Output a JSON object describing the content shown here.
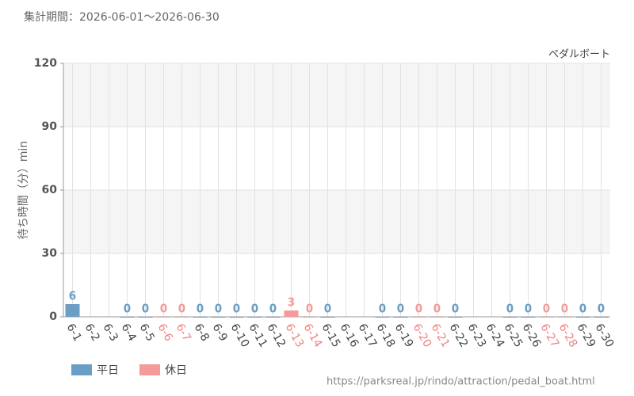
{
  "header": "集計期間：2026-06-01～2026-06-30",
  "source": "https://parksreal.jp/rindo/attraction/pedal_boat.html",
  "chart_data": {
    "type": "bar",
    "title": "ペダルボート",
    "y_label": "待ち時間（分）min",
    "categories": [
      "6-1",
      "6-2",
      "6-3",
      "6-4",
      "6-5",
      "6-6",
      "6-7",
      "6-8",
      "6-9",
      "6-10",
      "6-11",
      "6-12",
      "6-13",
      "6-14",
      "6-15",
      "6-16",
      "6-17",
      "6-18",
      "6-19",
      "6-20",
      "6-21",
      "6-22",
      "6-23",
      "6-24",
      "6-25",
      "6-26",
      "6-27",
      "6-28",
      "6-29",
      "6-30"
    ],
    "series": [
      {
        "name": "平日",
        "color": "#6a9ec5",
        "values": [
          6,
          null,
          null,
          0,
          0,
          null,
          null,
          0,
          0,
          0,
          0,
          0,
          null,
          null,
          0,
          null,
          null,
          0,
          0,
          null,
          null,
          0,
          null,
          null,
          0,
          0,
          null,
          null,
          0,
          0
        ]
      },
      {
        "name": "休日",
        "color": "#f59a9a",
        "values": [
          null,
          null,
          null,
          null,
          null,
          0,
          0,
          null,
          null,
          null,
          null,
          null,
          3,
          0,
          null,
          null,
          null,
          null,
          null,
          0,
          0,
          null,
          null,
          null,
          null,
          null,
          0,
          0,
          null,
          null
        ]
      }
    ],
    "ylim": [
      0,
      120
    ],
    "yticks": [
      0,
      30,
      60,
      90,
      120
    ],
    "grid": true
  }
}
